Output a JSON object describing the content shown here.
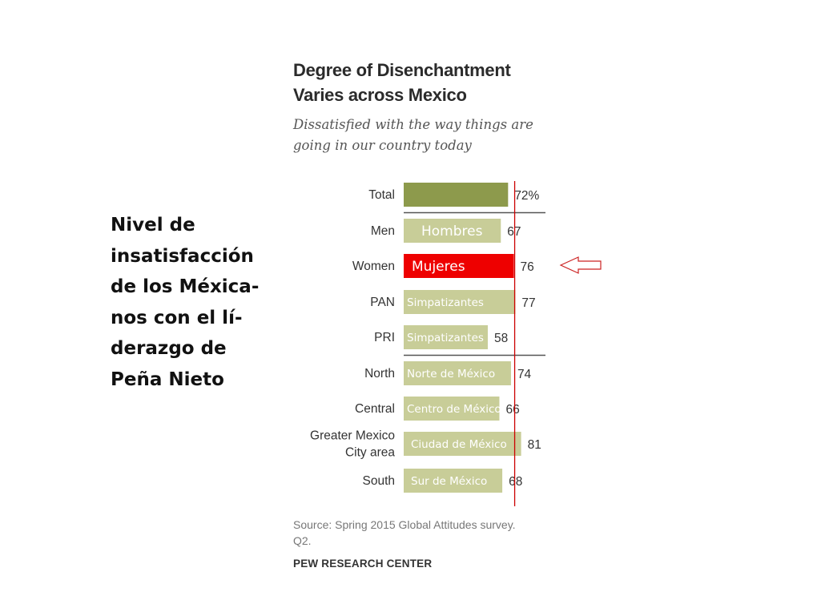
{
  "side_caption": [
    "Nivel de",
    "insatisfacción",
    "de los Méxica-",
    "nos con el lí-",
    "derazgo de",
    "Peña Nieto"
  ],
  "chart_data": {
    "type": "bar",
    "orientation": "horizontal",
    "title": [
      "Degree of Disenchantment",
      "Varies across Mexico"
    ],
    "subtitle": [
      "Dissatisfied with the way things are",
      "going in our country today"
    ],
    "xlim": [
      0,
      100
    ],
    "reference_line_value": 76,
    "categories": [
      {
        "label": [
          "Total"
        ],
        "value": 72,
        "value_label": "72%",
        "overlay": "",
        "color": "#8d9a4c",
        "highlight": false
      },
      {
        "label": [
          "Men"
        ],
        "value": 67,
        "value_label": "67",
        "overlay": "Hombres",
        "color": "#c8cd98",
        "highlight": false
      },
      {
        "label": [
          "Women"
        ],
        "value": 76,
        "value_label": "76",
        "overlay": "Mujeres",
        "color": "#ee0000",
        "highlight": true
      },
      {
        "label": [
          "PAN"
        ],
        "value": 77,
        "value_label": "77",
        "overlay": "Simpatizantes",
        "color": "#c8cd98",
        "highlight": false
      },
      {
        "label": [
          "PRI"
        ],
        "value": 58,
        "value_label": "58",
        "overlay": "Simpatizantes",
        "color": "#c8cd98",
        "highlight": false
      },
      {
        "label": [
          "North"
        ],
        "value": 74,
        "value_label": "74",
        "overlay": "Norte de México",
        "color": "#c8cd98",
        "highlight": false
      },
      {
        "label": [
          "Central"
        ],
        "value": 66,
        "value_label": "66",
        "overlay": "Centro de México",
        "color": "#c8cd98",
        "highlight": false
      },
      {
        "label": [
          "Greater Mexico",
          "City area"
        ],
        "value": 81,
        "value_label": "81",
        "overlay": "Ciudad de México",
        "color": "#c8cd98",
        "highlight": false
      },
      {
        "label": [
          "South"
        ],
        "value": 68,
        "value_label": "68",
        "overlay": "Sur de México",
        "color": "#c8cd98",
        "highlight": false
      }
    ],
    "group_separators_after": [
      0,
      4
    ],
    "annotation": "arrow pointing to Women bar",
    "colors": {
      "reference_line": "#cc0000",
      "arrow": "#cc2222",
      "separator": "#555555",
      "label_text": "#333333",
      "overlay_text": "#ffffff"
    },
    "source": [
      "Source: Spring 2015 Global Attitudes survey.",
      "Q2."
    ],
    "organization": "PEW RESEARCH CENTER"
  }
}
